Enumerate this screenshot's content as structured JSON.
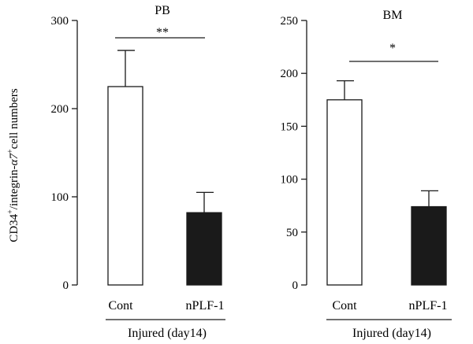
{
  "ylabel_parts": [
    "CD34",
    "+",
    "/integrin-",
    "α7",
    "+",
    "cell numbers"
  ],
  "chart_data": [
    {
      "type": "bar",
      "title": "PB",
      "categories": [
        "Cont",
        "nPLF-1"
      ],
      "values": [
        225,
        82
      ],
      "errors": [
        41,
        23
      ],
      "fills": [
        "#ffffff",
        "#1a1a1a"
      ],
      "ylim": [
        0,
        300
      ],
      "yticks": [
        0,
        100,
        200,
        300
      ],
      "significance": "**",
      "group_label": "Injured (day14)"
    },
    {
      "type": "bar",
      "title": "BM",
      "categories": [
        "Cont",
        "nPLF-1"
      ],
      "values": [
        175,
        74
      ],
      "errors": [
        18,
        15
      ],
      "fills": [
        "#ffffff",
        "#1a1a1a"
      ],
      "ylim": [
        0,
        250
      ],
      "yticks": [
        0,
        50,
        100,
        150,
        200,
        250
      ],
      "significance": "*",
      "group_label": "Injured (day14)"
    }
  ]
}
